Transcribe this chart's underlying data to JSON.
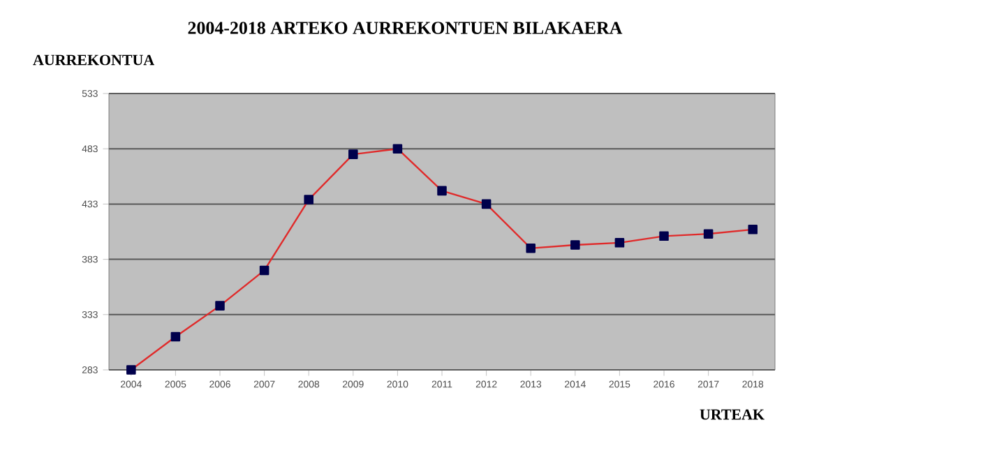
{
  "chart_data": {
    "type": "line",
    "title": "2004-2018 ARTEKO AURREKONTUEN BILAKAERA",
    "ylabel": "AURREKONTUA",
    "xlabel": "URTEAK",
    "categories": [
      "2004",
      "2005",
      "2006",
      "2007",
      "2008",
      "2009",
      "2010",
      "2011",
      "2012",
      "2013",
      "2014",
      "2015",
      "2016",
      "2017",
      "2018"
    ],
    "series": [
      {
        "color": "#e02a2a",
        "values": [
          283,
          313,
          341,
          373,
          437,
          478,
          483,
          445,
          433,
          393,
          396,
          398,
          404,
          406,
          410
        ]
      }
    ],
    "ylim": [
      283,
      533
    ],
    "yticks": [
      283,
      333,
      383,
      433,
      483,
      533
    ],
    "grid": "y",
    "marker": "square",
    "line_style": "solid"
  }
}
